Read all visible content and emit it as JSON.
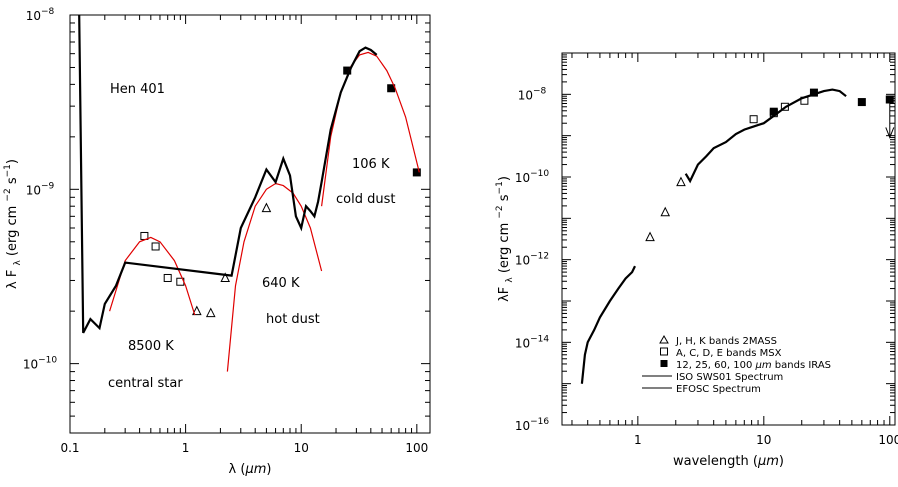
{
  "chart_data": [
    {
      "type": "scatter",
      "scale": {
        "x": "log",
        "y": "log"
      },
      "xlim": [
        0.1,
        130
      ],
      "ylim": [
        4e-11,
        1e-08
      ],
      "xlabel_main": "λ (",
      "xlabel_unit": "μm",
      "xlabel_close": ")",
      "ylabel_lambda": "λ F",
      "ylabel_sub": "λ",
      "ylabel_units": "(erg cm",
      "ylabel_exp1": "−2",
      "ylabel_s": "s",
      "ylabel_exp2": "−1",
      "ylabel_close": ")",
      "xticks": [
        {
          "v": 0.1,
          "label": "0.1"
        },
        {
          "v": 1,
          "label": "1"
        },
        {
          "v": 10,
          "label": "10"
        },
        {
          "v": 100,
          "label": "100"
        }
      ],
      "yticks": [
        {
          "v": 1e-10,
          "base": "10",
          "exp": "−10"
        },
        {
          "v": 1e-09,
          "base": "10",
          "exp": "−9"
        },
        {
          "v": 1e-08,
          "base": "10",
          "exp": "−8"
        }
      ],
      "annotations": {
        "object": "Hen 401",
        "t_star": "8500 K",
        "star_label": "central star",
        "t_hot": "640 K",
        "hot_label": "hot dust",
        "t_cold": "106 K",
        "cold_label": "cold dust"
      },
      "series": [
        {
          "marker": "open-square",
          "x": [
            0.44,
            0.55,
            0.7,
            0.9
          ],
          "y": [
            5.4e-10,
            4.7e-10,
            3.1e-10,
            2.95e-10
          ]
        },
        {
          "marker": "open-triangle",
          "x": [
            1.25,
            1.65,
            2.2,
            5.0
          ],
          "y": [
            2e-10,
            1.95e-10,
            3.1e-10,
            7.8e-10
          ]
        },
        {
          "marker": "filled-square",
          "x": [
            25,
            60,
            100
          ],
          "y": [
            4.8e-09,
            3.8e-09,
            1.25e-09
          ]
        },
        {
          "style": "red-curve",
          "x": [
            0.22,
            0.3,
            0.4,
            0.5,
            0.6,
            0.8,
            1.0,
            1.2
          ],
          "y": [
            2e-10,
            3.9e-10,
            5e-10,
            5.3e-10,
            5e-10,
            3.9e-10,
            2.8e-10,
            1.9e-10
          ]
        },
        {
          "style": "red-curve",
          "x": [
            2.3,
            2.7,
            3.2,
            4.0,
            5.0,
            6.0,
            7.0,
            8.5,
            10,
            12,
            15
          ],
          "y": [
            9e-11,
            2.8e-10,
            5e-10,
            8e-10,
            1e-09,
            1.08e-09,
            1.05e-09,
            9.5e-10,
            8e-10,
            6e-10,
            3.4e-10
          ]
        },
        {
          "style": "red-curve",
          "x": [
            15,
            18,
            22,
            27,
            32,
            38,
            45,
            55,
            65,
            80,
            105
          ],
          "y": [
            8e-10,
            2e-09,
            3.6e-09,
            5.1e-09,
            5.9e-09,
            6.1e-09,
            5.8e-09,
            4.8e-09,
            3.8e-09,
            2.6e-09,
            1.25e-09
          ]
        },
        {
          "style": "black-spectrum",
          "x": [
            0.12,
            0.13,
            0.15,
            0.18,
            0.2,
            0.25,
            0.3,
            2.5,
            3,
            4,
            5,
            6,
            7,
            8,
            9,
            10,
            11,
            12,
            13,
            14,
            15,
            18,
            22,
            27,
            32,
            36,
            40,
            45
          ],
          "y": [
            1e-08,
            1.5e-10,
            1.8e-10,
            1.6e-10,
            2.2e-10,
            2.8e-10,
            3.8e-10,
            3.2e-10,
            6e-10,
            9e-10,
            1.3e-09,
            1.1e-09,
            1.5e-09,
            1.2e-09,
            7e-10,
            6e-10,
            8e-10,
            7.5e-10,
            7e-10,
            8.5e-10,
            1.1e-09,
            2.2e-09,
            3.6e-09,
            5e-09,
            6.2e-09,
            6.5e-09,
            6.3e-09,
            5.9e-09
          ]
        }
      ]
    },
    {
      "type": "scatter",
      "scale": {
        "x": "log",
        "y": "log"
      },
      "xlim": [
        0.25,
        110
      ],
      "ylim": [
        1e-16,
        1e-07
      ],
      "xlabel_main": "wavelength (",
      "xlabel_unit": "μm",
      "xlabel_close": ")",
      "ylabel_lambda": "λF",
      "ylabel_sub": "λ",
      "ylabel_units": "(erg cm",
      "ylabel_exp1": "−2",
      "ylabel_s": "s",
      "ylabel_exp2": "−1",
      "ylabel_close": ")",
      "xticks": [
        {
          "v": 1,
          "label": "1"
        },
        {
          "v": 10,
          "label": "10"
        },
        {
          "v": 100,
          "label": "100"
        }
      ],
      "yticks": [
        {
          "v": 1e-16,
          "base": "10",
          "exp": "−16"
        },
        {
          "v": 1e-14,
          "base": "10",
          "exp": "−14"
        },
        {
          "v": 1e-12,
          "base": "10",
          "exp": "−12"
        },
        {
          "v": 1e-10,
          "base": "10",
          "exp": "−10"
        },
        {
          "v": 1e-08,
          "base": "10",
          "exp": "−8"
        }
      ],
      "legend": {
        "position": "bottom-right",
        "items": [
          {
            "marker": "open-triangle",
            "text": "J, H, K bands 2MASS"
          },
          {
            "marker": "open-square",
            "text": "A, C, D, E bands MSX"
          },
          {
            "marker": "filled-square",
            "text": "12, 25, 60, 100 ",
            "unit": "μm",
            "rest": "  bands IRAS"
          },
          {
            "marker": "line",
            "text": "ISO SWS01 Spectrum"
          },
          {
            "marker": "line",
            "text": "EFOSC Spectrum"
          }
        ]
      },
      "series": [
        {
          "name": "J, H, K bands 2MASS",
          "marker": "open-triangle",
          "x": [
            1.25,
            1.65,
            2.2
          ],
          "y": [
            3.5e-12,
            1.4e-11,
            7.5e-11
          ]
        },
        {
          "name": "A, C, D, E bands MSX",
          "marker": "open-square",
          "x": [
            8.3,
            12,
            14.7,
            21
          ],
          "y": [
            2.5e-09,
            3.5e-09,
            5e-09,
            7e-09
          ]
        },
        {
          "name": "12, 25, 60, 100 μm  bands IRAS",
          "marker": "filled-square",
          "x": [
            12,
            25,
            60,
            100
          ],
          "y": [
            3.8e-09,
            1.1e-08,
            6.5e-09,
            7.5e-09
          ]
        },
        {
          "name": "ISO SWS01 Spectrum",
          "marker": "line",
          "x": [
            2.4,
            2.6,
            3,
            3.5,
            4,
            5,
            6,
            7,
            8,
            9,
            10,
            12,
            15,
            20,
            25,
            30,
            35,
            40,
            45
          ],
          "y": [
            1.2e-10,
            8e-11,
            2e-10,
            3.2e-10,
            5e-10,
            7e-10,
            1.1e-09,
            1.4e-09,
            1.6e-09,
            1.8e-09,
            2e-09,
            3e-09,
            5e-09,
            8e-09,
            1e-08,
            1.2e-08,
            1.3e-08,
            1.2e-08,
            9e-09
          ]
        },
        {
          "name": "EFOSC Spectrum",
          "marker": "line",
          "x": [
            0.36,
            0.38,
            0.4,
            0.45,
            0.5,
            0.6,
            0.7,
            0.8,
            0.9,
            0.95
          ],
          "y": [
            1e-15,
            5e-15,
            1e-14,
            2e-14,
            4e-14,
            1e-13,
            2e-13,
            3.5e-13,
            5e-13,
            7e-13
          ]
        }
      ]
    }
  ]
}
